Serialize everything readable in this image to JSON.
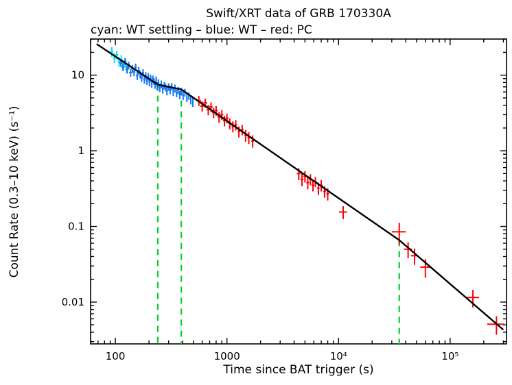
{
  "chart": {
    "title": "Swift/XRT data of GRB 170330A",
    "subtitle": "cyan: WT settling – blue: WT – red: PC",
    "xlabel": "Time since BAT trigger (s)",
    "ylabel": "Count Rate (0.3–10 keV) (s⁻¹)"
  },
  "chart_data": {
    "type": "scatter",
    "x_scale": "log",
    "y_scale": "log",
    "xlim": [
      60,
      320000
    ],
    "ylim": [
      0.0028,
      30
    ],
    "grid": false,
    "legend_position": "subtitle-top-left",
    "x_ticks": [
      {
        "v": 100,
        "label": "100"
      },
      {
        "v": 1000,
        "label": "1000"
      },
      {
        "v": 10000,
        "label": "10⁴"
      },
      {
        "v": 100000,
        "label": "10⁵"
      }
    ],
    "y_ticks": [
      {
        "v": 10,
        "label": "10"
      },
      {
        "v": 1,
        "label": "1"
      },
      {
        "v": 0.1,
        "label": "0.1"
      },
      {
        "v": 0.01,
        "label": "0.01"
      }
    ],
    "series": [
      {
        "name": "WT settling",
        "color": "#00dff0",
        "points": [
          [
            93,
            20.5,
            3,
            3.0
          ],
          [
            98,
            17.0,
            3,
            2.5
          ],
          [
            103,
            18.5,
            3,
            2.5
          ],
          [
            108,
            15.0,
            3,
            2.2
          ],
          [
            113,
            16.2,
            3,
            2.2
          ],
          [
            118,
            13.5,
            3,
            2.0
          ],
          [
            123,
            14.6,
            3,
            2.0
          ],
          [
            128,
            12.4,
            3,
            1.9
          ]
        ]
      },
      {
        "name": "WT",
        "color": "#1277f7",
        "points": [
          [
            112,
            14.5,
            4,
            1.6
          ],
          [
            117,
            12.8,
            4,
            1.5
          ],
          [
            122,
            15.2,
            4,
            1.6
          ],
          [
            127,
            11.9,
            4,
            1.4
          ],
          [
            132,
            13.5,
            4,
            1.5
          ],
          [
            137,
            10.8,
            4,
            1.3
          ],
          [
            142,
            12.2,
            4,
            1.4
          ],
          [
            147,
            11.0,
            4,
            1.3
          ],
          [
            152,
            12.8,
            4,
            1.4
          ],
          [
            157,
            9.8,
            4,
            1.2
          ],
          [
            162,
            11.5,
            4,
            1.3
          ],
          [
            167,
            10.2,
            4,
            1.2
          ],
          [
            172,
            9.2,
            4,
            1.1
          ],
          [
            177,
            10.8,
            4,
            1.2
          ],
          [
            182,
            8.8,
            4,
            1.1
          ],
          [
            187,
            9.9,
            4,
            1.1
          ],
          [
            192,
            8.4,
            4,
            1.0
          ],
          [
            197,
            9.6,
            4,
            1.1
          ],
          [
            202,
            8.1,
            4,
            1.0
          ],
          [
            207,
            9.2,
            4,
            1.0
          ],
          [
            212,
            7.8,
            4,
            1.0
          ],
          [
            217,
            8.9,
            4,
            1.0
          ],
          [
            222,
            8.3,
            4,
            0.9
          ],
          [
            227,
            7.5,
            4,
            0.9
          ],
          [
            232,
            8.6,
            4,
            1.0
          ],
          [
            237,
            7.2,
            4,
            0.9
          ],
          [
            243,
            7.9,
            5,
            0.9
          ],
          [
            250,
            6.8,
            5,
            0.8
          ],
          [
            258,
            7.6,
            5,
            0.9
          ],
          [
            266,
            6.5,
            5,
            0.8
          ],
          [
            274,
            7.3,
            5,
            0.8
          ],
          [
            282,
            6.9,
            5,
            0.8
          ],
          [
            290,
            6.2,
            5,
            0.8
          ],
          [
            300,
            7.0,
            6,
            0.8
          ],
          [
            310,
            6.4,
            6,
            0.8
          ],
          [
            320,
            7.1,
            6,
            0.8
          ],
          [
            330,
            6.0,
            6,
            0.7
          ],
          [
            342,
            6.7,
            6,
            0.8
          ],
          [
            354,
            5.8,
            6,
            0.7
          ],
          [
            366,
            6.3,
            6,
            0.7
          ],
          [
            378,
            5.5,
            6,
            0.7
          ],
          [
            390,
            6.1,
            6,
            0.7
          ],
          [
            405,
            5.4,
            7,
            0.7
          ],
          [
            420,
            5.9,
            7,
            0.7
          ],
          [
            438,
            5.0,
            7,
            0.6
          ],
          [
            456,
            5.3,
            7,
            0.6
          ],
          [
            474,
            4.7,
            7,
            0.6
          ],
          [
            495,
            4.4,
            8,
            0.6
          ]
        ]
      },
      {
        "name": "PC",
        "color": "#ff0000",
        "points": [
          [
            560,
            4.6,
            25,
            0.7
          ],
          [
            600,
            3.9,
            25,
            0.6
          ],
          [
            640,
            4.3,
            25,
            0.6
          ],
          [
            680,
            3.5,
            25,
            0.55
          ],
          [
            720,
            3.8,
            25,
            0.55
          ],
          [
            760,
            3.2,
            25,
            0.5
          ],
          [
            800,
            3.4,
            28,
            0.5
          ],
          [
            850,
            2.8,
            28,
            0.45
          ],
          [
            900,
            3.0,
            28,
            0.45
          ],
          [
            950,
            2.5,
            28,
            0.4
          ],
          [
            1000,
            2.7,
            30,
            0.4
          ],
          [
            1060,
            2.3,
            30,
            0.38
          ],
          [
            1130,
            2.1,
            32,
            0.35
          ],
          [
            1200,
            2.2,
            32,
            0.35
          ],
          [
            1280,
            1.8,
            35,
            0.3
          ],
          [
            1370,
            1.9,
            38,
            0.3
          ],
          [
            1470,
            1.6,
            40,
            0.28
          ],
          [
            1570,
            1.5,
            42,
            0.27
          ],
          [
            1700,
            1.35,
            50,
            0.25
          ],
          [
            4400,
            0.5,
            180,
            0.09
          ],
          [
            4700,
            0.42,
            160,
            0.08
          ],
          [
            5000,
            0.46,
            160,
            0.08
          ],
          [
            5300,
            0.38,
            160,
            0.07
          ],
          [
            5600,
            0.42,
            160,
            0.07
          ],
          [
            5900,
            0.35,
            160,
            0.06
          ],
          [
            6200,
            0.39,
            170,
            0.06
          ],
          [
            6600,
            0.32,
            180,
            0.06
          ],
          [
            7000,
            0.35,
            190,
            0.06
          ],
          [
            7500,
            0.29,
            200,
            0.05
          ],
          [
            8000,
            0.27,
            220,
            0.05
          ],
          [
            11000,
            0.155,
            900,
            0.03
          ],
          [
            35000,
            0.085,
            5000,
            0.027
          ],
          [
            42000,
            0.05,
            3500,
            0.012
          ],
          [
            48000,
            0.041,
            3500,
            0.01
          ],
          [
            60000,
            0.029,
            6000,
            0.008
          ],
          [
            160000,
            0.0115,
            22000,
            0.003
          ],
          [
            260000,
            0.0051,
            45000,
            0.0014
          ]
        ]
      }
    ],
    "fit_line": {
      "name": "broken-power-law-fit",
      "color": "#000000",
      "vertices": [
        [
          68,
          25.8
        ],
        [
          240,
          7.5
        ],
        [
          390,
          6.48
        ],
        [
          35000,
          0.066
        ],
        [
          300000,
          0.0043
        ]
      ]
    },
    "break_lines": {
      "name": "break-time-markers",
      "color": "#00d02a",
      "x_top": [
        [
          240,
          7.5
        ],
        [
          390,
          6.48
        ],
        [
          35000,
          0.066
        ]
      ]
    }
  }
}
